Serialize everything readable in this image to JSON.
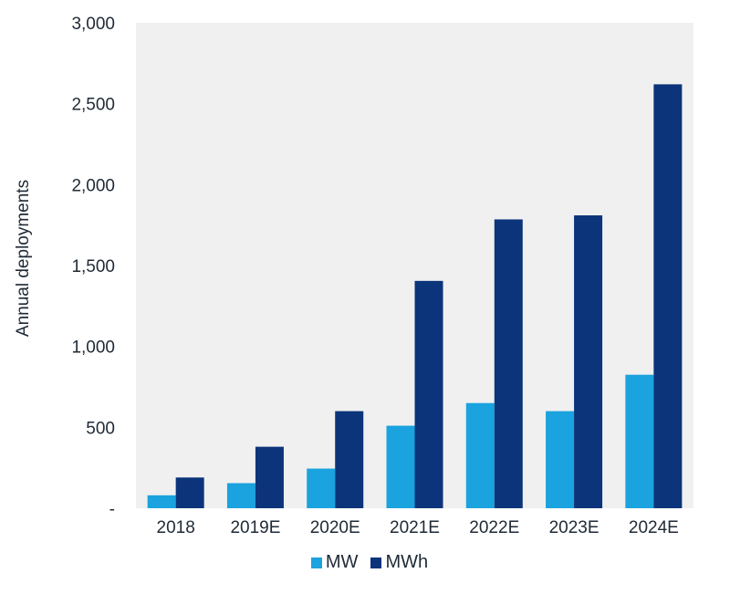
{
  "chart_data": {
    "type": "bar",
    "title": "",
    "xlabel": "",
    "ylabel": "Annual deployments",
    "ylim": [
      0,
      3000
    ],
    "yticks": [
      0,
      500,
      1000,
      1500,
      2000,
      2500,
      3000
    ],
    "ytick_labels": [
      "-",
      "500",
      "1,000",
      "1,500",
      "2,000",
      "2,500",
      "3,000"
    ],
    "categories": [
      "2018",
      "2019E",
      "2020E",
      "2021E",
      "2022E",
      "2023E",
      "2024E"
    ],
    "series": [
      {
        "name": "MW",
        "color": "#1aa3de",
        "values": [
          80,
          155,
          245,
          510,
          650,
          600,
          825
        ]
      },
      {
        "name": "MWh",
        "color": "#0b347a",
        "values": [
          190,
          380,
          600,
          1405,
          1785,
          1810,
          2620
        ]
      }
    ],
    "grid": false,
    "plot_background": "#f0f0f0",
    "legend_position": "bottom"
  }
}
